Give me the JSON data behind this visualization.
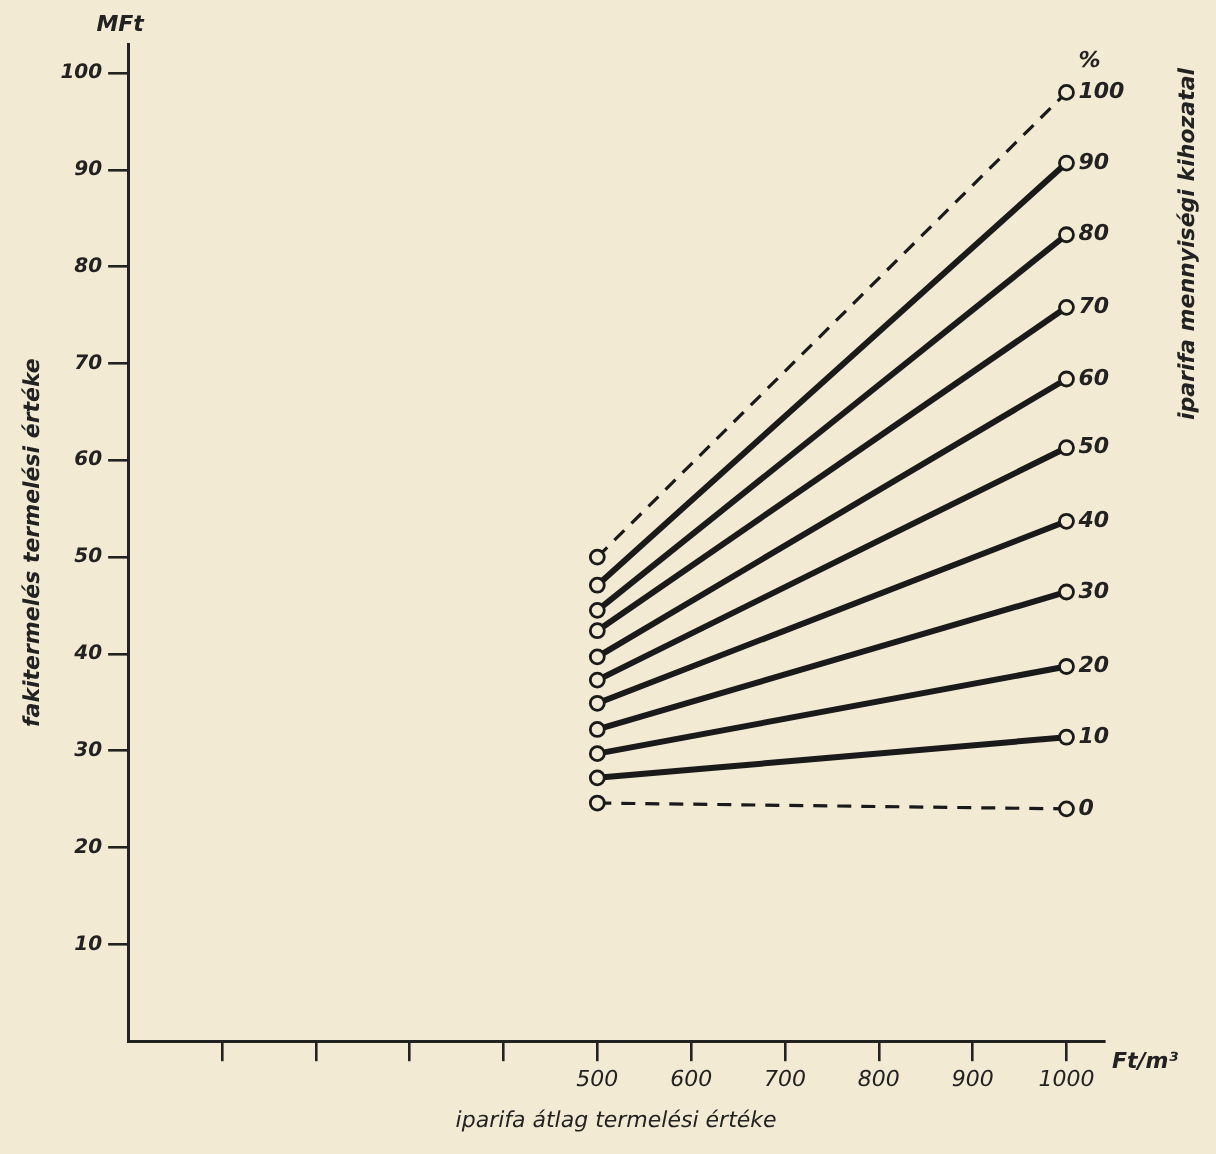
{
  "chart_data": {
    "type": "line",
    "xlabel": "iparifa átlag termelési értéke",
    "ylabel": "fakitermelés termelési értéke",
    "legend_title": "%",
    "annotations": [
      "MFt",
      "Ft/m³",
      "iparifa mennyiségi kihozatal"
    ],
    "x": [
      500,
      1000
    ],
    "xlim": [
      0,
      1040
    ],
    "ylim": [
      0,
      103
    ],
    "xticks": [
      {
        "value": 100,
        "label": null
      },
      {
        "value": 200,
        "label": null
      },
      {
        "value": 300,
        "label": null
      },
      {
        "value": 400,
        "label": null
      },
      500,
      600,
      700,
      800,
      900,
      1000
    ],
    "yticks": [
      10,
      20,
      30,
      40,
      50,
      60,
      70,
      80,
      90,
      100
    ],
    "grid": false,
    "legend": false,
    "marker": "circle",
    "series": [
      {
        "name": "0",
        "color": "#1a1a1a",
        "values": [
          24.6,
          24.0
        ],
        "line_style": "dashed"
      },
      {
        "name": "10",
        "color": "#1a1a1a",
        "values": [
          27.2,
          31.4
        ],
        "line_style": "solid"
      },
      {
        "name": "20",
        "color": "#1a1a1a",
        "values": [
          29.7,
          38.7
        ],
        "line_style": "solid"
      },
      {
        "name": "30",
        "color": "#1a1a1a",
        "values": [
          32.2,
          46.4
        ],
        "line_style": "solid"
      },
      {
        "name": "40",
        "color": "#1a1a1a",
        "values": [
          34.9,
          53.7
        ],
        "line_style": "solid"
      },
      {
        "name": "50",
        "color": "#1a1a1a",
        "values": [
          37.3,
          61.3
        ],
        "line_style": "solid"
      },
      {
        "name": "60",
        "color": "#1a1a1a",
        "values": [
          39.7,
          68.4
        ],
        "line_style": "solid"
      },
      {
        "name": "70",
        "color": "#1a1a1a",
        "values": [
          42.4,
          75.8
        ],
        "line_style": "solid"
      },
      {
        "name": "80",
        "color": "#1a1a1a",
        "values": [
          44.5,
          83.3
        ],
        "line_style": "solid"
      },
      {
        "name": "90",
        "color": "#1a1a1a",
        "values": [
          47.1,
          90.7
        ],
        "line_style": "solid"
      },
      {
        "name": "100",
        "color": "#1a1a1a",
        "values": [
          50.0,
          98.0
        ],
        "line_style": "dashed"
      }
    ]
  }
}
